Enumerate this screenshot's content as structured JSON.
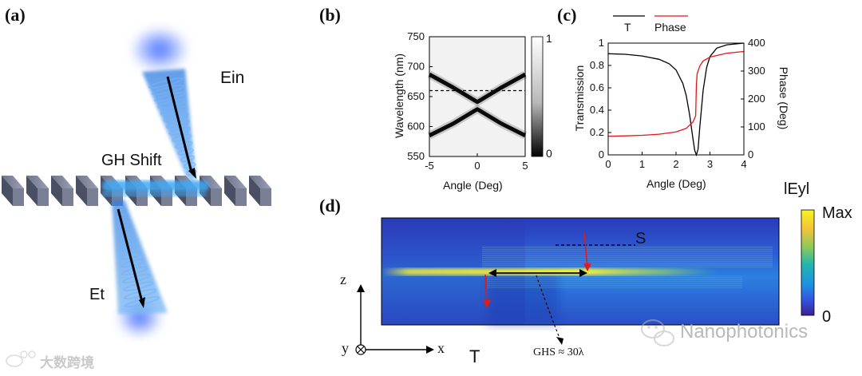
{
  "panels": {
    "a": "(a)",
    "b": "(b)",
    "c": "(c)",
    "d": "(d)"
  },
  "panel_a": {
    "incident_label": "Ein",
    "transmitted_label": "Et",
    "shift_label": "GH Shift"
  },
  "panel_b": {
    "ylabel": "Wavelength (nm)",
    "xlabel": "Angle (Deg)",
    "colorbar_ticks": [
      "1",
      "0"
    ]
  },
  "panel_c": {
    "legend": [
      "T",
      "Phase"
    ],
    "ylabel_left": "Transmission",
    "ylabel_right": "Phase (Deg)",
    "xlabel": "Angle (Deg)"
  },
  "panel_d": {
    "colorbar_title": "lEyl",
    "colorbar_max": "Max",
    "colorbar_min": "0",
    "grating_label": "S",
    "transmitted_label": "T",
    "shift_label": "GHS ≈ 30λ",
    "axis_z": "z",
    "axis_x": "x",
    "axis_y": "y"
  },
  "watermarks": {
    "left": "大数跨境",
    "right": "Nanophotonics"
  },
  "colors": {
    "transmission": "#000000",
    "phase": "#e8141a",
    "arrow_red": "#e01b1b"
  },
  "chart_data": [
    {
      "type": "heatmap",
      "panel": "(b)",
      "x": {
        "label": "Angle (Deg)",
        "range": [
          -5,
          5
        ],
        "ticks": [
          -5,
          0,
          5
        ]
      },
      "y": {
        "label": "Wavelength (nm)",
        "range": [
          550,
          750
        ],
        "ticks": [
          550,
          600,
          650,
          700,
          750
        ]
      },
      "colorbar": {
        "range": [
          0,
          1
        ],
        "ticks": [
          0,
          1
        ]
      },
      "upper_branch": {
        "x": [
          -5,
          -2.5,
          0,
          2.5,
          5
        ],
        "y": [
          687,
          665,
          641,
          665,
          687
        ]
      },
      "lower_branch": {
        "x": [
          -5,
          -2.5,
          0,
          2.5,
          5
        ],
        "y": [
          585,
          605,
          629,
          605,
          585
        ]
      },
      "dashed_line_wavelength": 660
    },
    {
      "type": "line",
      "panel": "(c)",
      "x": {
        "label": "Angle (Deg)",
        "range": [
          0,
          4
        ],
        "ticks": [
          0,
          1,
          2,
          3,
          4
        ]
      },
      "y_left": {
        "label": "Transmission",
        "range": [
          0,
          1
        ],
        "ticks": [
          0,
          0.2,
          0.4,
          0.6,
          0.8,
          1
        ]
      },
      "y_right": {
        "label": "Phase (Deg)",
        "range": [
          0,
          400
        ],
        "ticks": [
          0,
          100,
          200,
          300,
          400
        ]
      },
      "legend_placement": "top",
      "series": [
        {
          "name": "T",
          "axis": "left",
          "x": [
            0,
            0.5,
            1,
            1.5,
            1.8,
            2.0,
            2.2,
            2.3,
            2.4,
            2.5,
            2.55,
            2.6,
            2.65,
            2.7,
            2.8,
            2.9,
            3.0,
            3.2,
            3.5,
            4.0
          ],
          "y": [
            0.905,
            0.9,
            0.885,
            0.855,
            0.815,
            0.76,
            0.64,
            0.53,
            0.36,
            0.14,
            0.04,
            0.0,
            0.05,
            0.25,
            0.58,
            0.78,
            0.88,
            0.955,
            0.985,
            1.0
          ]
        },
        {
          "name": "Phase",
          "axis": "right",
          "x": [
            0,
            0.5,
            1,
            1.5,
            2.0,
            2.3,
            2.5,
            2.58,
            2.6,
            2.62,
            2.7,
            2.8,
            3.0,
            3.5,
            4.0
          ],
          "y": [
            67,
            68,
            70,
            74,
            82,
            95,
            118,
            140,
            250,
            290,
            318,
            336,
            350,
            364,
            370
          ]
        }
      ]
    }
  ]
}
